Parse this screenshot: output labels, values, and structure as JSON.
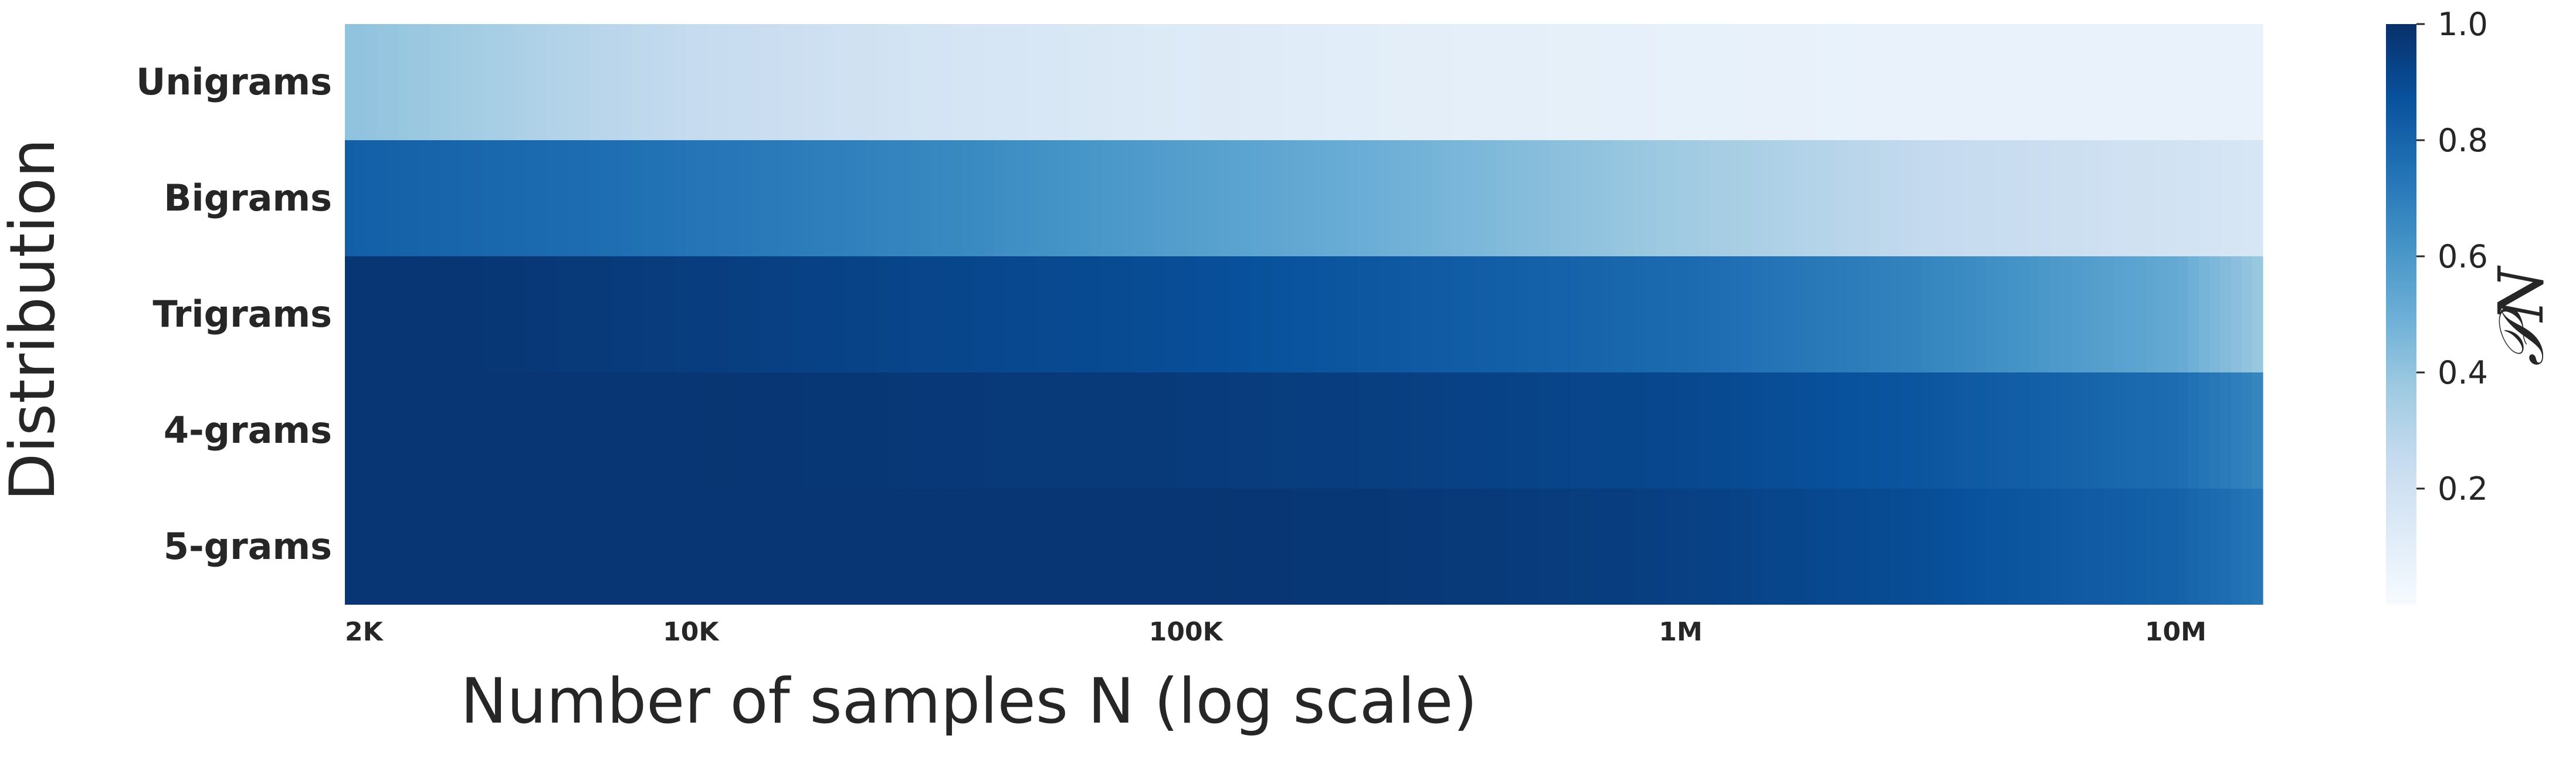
{
  "chart_data": {
    "type": "heatmap",
    "title": "",
    "xlabel": "Number of samples N (log scale)",
    "ylabel": "Distribution",
    "x_scale": "log",
    "xlim": [
      2000,
      15000000
    ],
    "x_ticks": [
      {
        "value": 2000,
        "label": "2K"
      },
      {
        "value": 10000,
        "label": "10K"
      },
      {
        "value": 100000,
        "label": "100K"
      },
      {
        "value": 1000000,
        "label": "1M"
      },
      {
        "value": 10000000,
        "label": "10M"
      }
    ],
    "rows": [
      "Unigrams",
      "Bigrams",
      "Trigrams",
      "4-grams",
      "5-grams"
    ],
    "profile_x": [
      2000,
      3000,
      5000,
      10000,
      30000,
      100000,
      300000,
      1000000,
      3000000,
      10000000,
      15000000
    ],
    "series": [
      {
        "name": "Unigrams",
        "values": [
          0.41,
          0.38,
          0.32,
          0.25,
          0.18,
          0.13,
          0.1,
          0.08,
          0.07,
          0.07,
          0.07
        ]
      },
      {
        "name": "Bigrams",
        "values": [
          0.82,
          0.8,
          0.78,
          0.74,
          0.67,
          0.57,
          0.48,
          0.37,
          0.26,
          0.19,
          0.16
        ]
      },
      {
        "name": "Trigrams",
        "values": [
          0.98,
          0.98,
          0.97,
          0.95,
          0.92,
          0.89,
          0.84,
          0.78,
          0.68,
          0.52,
          0.38
        ]
      },
      {
        "name": "4-grams",
        "values": [
          0.98,
          0.98,
          0.98,
          0.98,
          0.97,
          0.96,
          0.94,
          0.91,
          0.86,
          0.77,
          0.67
        ]
      },
      {
        "name": "5-grams",
        "values": [
          0.98,
          0.98,
          0.98,
          0.98,
          0.98,
          0.98,
          0.97,
          0.94,
          0.89,
          0.81,
          0.73
        ]
      }
    ],
    "colorbar": {
      "label": "𝒫N",
      "range": [
        0.0,
        1.0
      ],
      "ticks": [
        "0.2",
        "0.4",
        "0.6",
        "0.8",
        "1.0"
      ],
      "colormap": "Blues",
      "colors": [
        "#f7fbff",
        "#deebf7",
        "#c6dbef",
        "#9ecae1",
        "#6baed6",
        "#4292c6",
        "#2171b5",
        "#08519c",
        "#08306b"
      ]
    },
    "grid": false,
    "legend": "colorbar-right"
  }
}
